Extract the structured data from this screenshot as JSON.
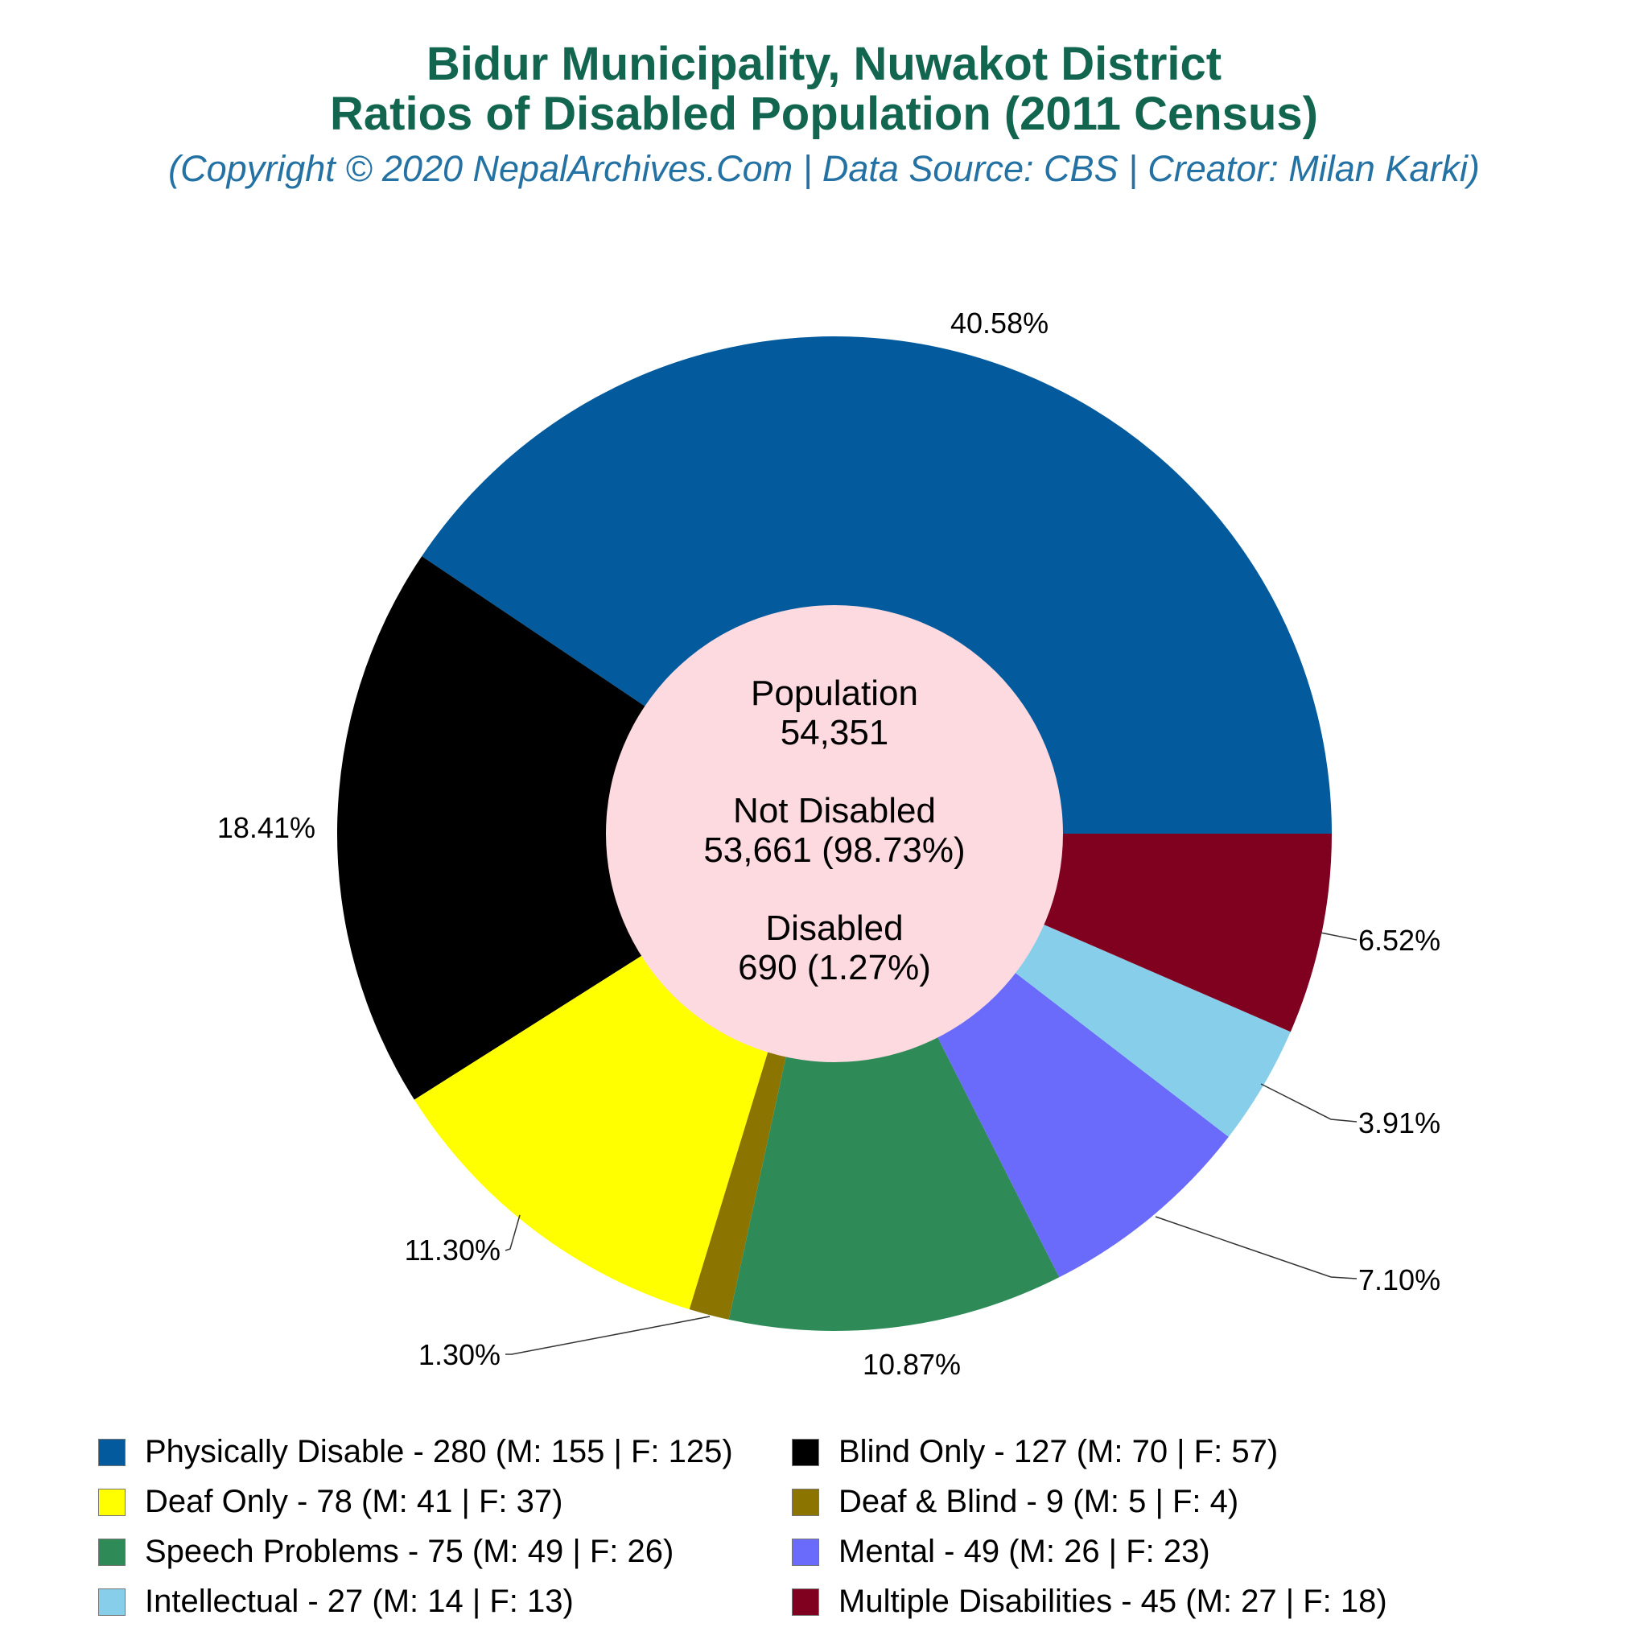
{
  "header": {
    "title_line1": "Bidur Municipality, Nuwakot District",
    "title_line2": "Ratios of Disabled Population (2011 Census)",
    "subtitle": "(Copyright © 2020 NepalArchives.Com | Data Source: CBS | Creator: Milan Karki)"
  },
  "center": {
    "population_label": "Population",
    "population_value": "54,351",
    "not_disabled_label": "Not Disabled",
    "not_disabled_value": "53,661 (98.73%)",
    "disabled_label": "Disabled",
    "disabled_value": "690 (1.27%)"
  },
  "legend": [
    {
      "label": "Physically Disable - 280 (M: 155 | F: 125)",
      "color": "#035a9c"
    },
    {
      "label": "Blind Only - 127 (M: 70 | F: 57)",
      "color": "#000000"
    },
    {
      "label": "Deaf Only - 78 (M: 41 | F: 37)",
      "color": "#ffff00"
    },
    {
      "label": "Deaf & Blind - 9 (M: 5 | F: 4)",
      "color": "#8b7500"
    },
    {
      "label": "Speech Problems - 75 (M: 49 | F: 26)",
      "color": "#2e8b57"
    },
    {
      "label": "Mental - 49 (M: 26 | F: 23)",
      "color": "#6a6afb"
    },
    {
      "label": "Intellectual - 27 (M: 14 | F: 13)",
      "color": "#87ceeb"
    },
    {
      "label": "Multiple Disabilities - 45 (M: 27 | F: 18)",
      "color": "#800020"
    }
  ],
  "chart_data": {
    "type": "pie",
    "subtype": "donut",
    "title": "Bidur Municipality, Nuwakot District — Ratios of Disabled Population (2011 Census)",
    "subtitle": "(Copyright © 2020 NepalArchives.Com | Data Source: CBS | Creator: Milan Karki)",
    "categories": [
      "Physically Disable",
      "Blind Only",
      "Deaf Only",
      "Deaf & Blind",
      "Speech Problems",
      "Mental",
      "Intellectual",
      "Multiple Disabilities"
    ],
    "values": [
      280,
      127,
      78,
      9,
      75,
      49,
      27,
      45
    ],
    "male": [
      155,
      70,
      41,
      5,
      49,
      26,
      14,
      27
    ],
    "female": [
      125,
      57,
      37,
      4,
      26,
      23,
      13,
      18
    ],
    "percent_labels": [
      "40.58%",
      "18.41%",
      "11.30%",
      "1.30%",
      "10.87%",
      "7.10%",
      "3.91%",
      "6.52%"
    ],
    "colors": [
      "#035a9c",
      "#000000",
      "#ffff00",
      "#8b7500",
      "#2e8b57",
      "#6a6afb",
      "#87ceeb",
      "#800020"
    ],
    "start_angle_deg": 0,
    "direction": "counterclockwise",
    "center_text": {
      "population": "54,351",
      "not_disabled": "53,661 (98.73%)",
      "disabled": "690 (1.27%)"
    },
    "legend_position": "bottom"
  }
}
